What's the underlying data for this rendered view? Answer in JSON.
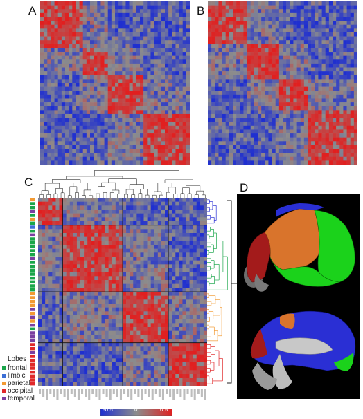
{
  "panels": {
    "a": "A",
    "b": "B",
    "c": "C",
    "d": "D"
  },
  "legend": {
    "title": "Lobes",
    "items": [
      {
        "label": "frontal",
        "color": "#1aa64a"
      },
      {
        "label": "limbic",
        "color": "#3b6fd6"
      },
      {
        "label": "parietal",
        "color": "#f29a33"
      },
      {
        "label": "occipital",
        "color": "#e0282a"
      },
      {
        "label": "temporal",
        "color": "#7b3fa0"
      }
    ]
  },
  "colorbar": {
    "min_label": "-0.5",
    "mid_label": "0",
    "max_label": "0.5"
  },
  "colors": {
    "negative": "#1f2fd0",
    "neutral": "#8c8c8c",
    "positive": "#e11f1f",
    "frontal_region": "#1bd21b",
    "parietal_region": "#d9742c",
    "occipital_region": "#a31b1b",
    "medial_region": "#2a2fd4"
  }
}
